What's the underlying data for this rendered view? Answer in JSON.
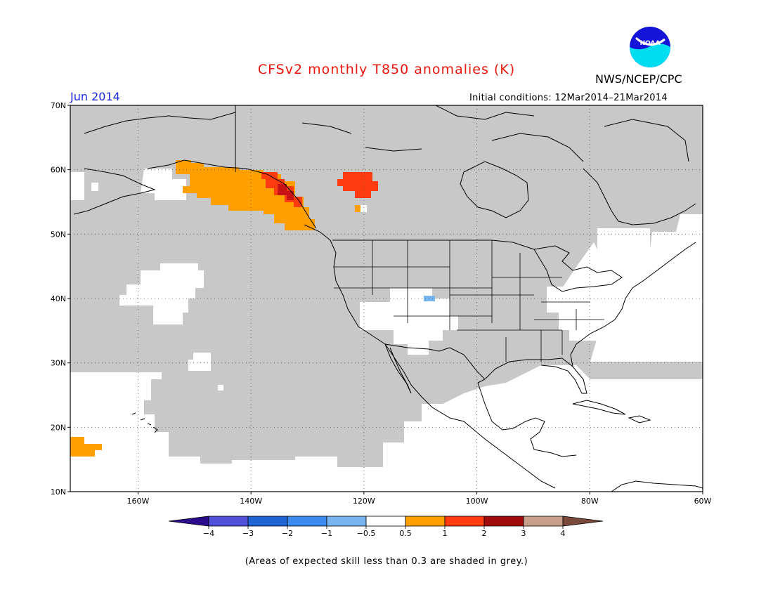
{
  "map": {
    "title": "CFSv2 monthly T850 anomalies (K)",
    "agency": "NWS/NCEP/CPC",
    "logo_text": "NOAA",
    "month": "Jun 2014",
    "initial_conditions": "Initial conditions: 12Mar2014–21Mar2014",
    "extent": {
      "lon_min": -172,
      "lon_max": -60,
      "lat_min": 10,
      "lat_max": 70
    },
    "lat_ticks": [
      {
        "value": 70,
        "label": "70N"
      },
      {
        "value": 60,
        "label": "60N"
      },
      {
        "value": 50,
        "label": "50N"
      },
      {
        "value": 40,
        "label": "40N"
      },
      {
        "value": 30,
        "label": "30N"
      },
      {
        "value": 20,
        "label": "20N"
      },
      {
        "value": 10,
        "label": "10N"
      }
    ],
    "lon_ticks": [
      {
        "value": -160,
        "label": "160W"
      },
      {
        "value": -140,
        "label": "140W"
      },
      {
        "value": -120,
        "label": "120W"
      },
      {
        "value": -100,
        "label": "100W"
      },
      {
        "value": -80,
        "label": "80W"
      },
      {
        "value": -60,
        "label": "60W"
      }
    ],
    "skill_note": "(Areas of expected skill less than 0.3 are shaded in grey.)"
  },
  "colors": {
    "grey": "#c8c8c8",
    "anomaly_0_5_to_1": "#ffa000",
    "anomaly_1_to_2": "#ff3c10",
    "anomaly_2_to_3": "#c81414",
    "anomaly_neg_1_to_neg_0_5": "#78b4f0",
    "coast": "#000000"
  },
  "colorbar": {
    "labels": [
      "−4",
      "−3",
      "−2",
      "−1",
      "−0.5",
      "0.5",
      "1",
      "2",
      "3",
      "4"
    ],
    "colors": [
      "#2c0a8c",
      "#5050d8",
      "#2064d4",
      "#3c8cf0",
      "#78b4f0",
      "#ffffff",
      "#ffa000",
      "#ff3c10",
      "#a00a0a",
      "#c8a08c",
      "#7a4a3a"
    ]
  }
}
